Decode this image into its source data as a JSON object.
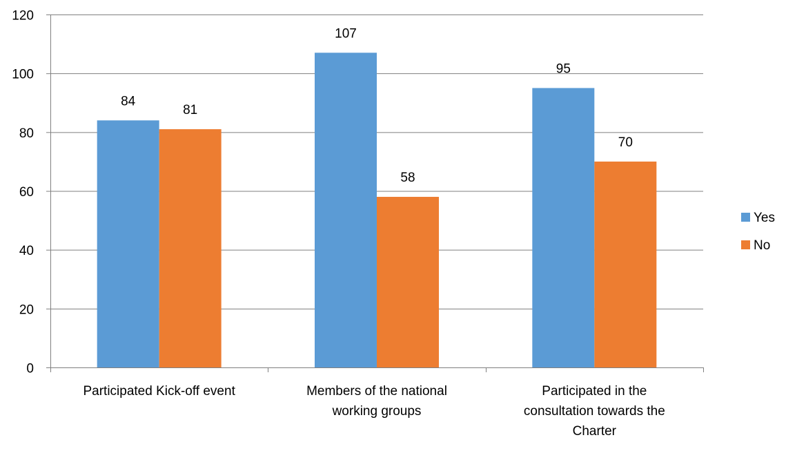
{
  "chart_data": {
    "type": "bar",
    "categories": [
      [
        "Participated Kick-off event"
      ],
      [
        "Members of the national",
        "working groups"
      ],
      [
        "Participated in the",
        "consultation towards the",
        "Charter"
      ]
    ],
    "series": [
      {
        "name": "Yes",
        "values": [
          84,
          107,
          95
        ],
        "color": "#5b9bd5"
      },
      {
        "name": "No",
        "values": [
          81,
          58,
          70
        ],
        "color": "#ed7d31"
      }
    ],
    "ylim": [
      0,
      120
    ],
    "yticks": [
      0,
      20,
      40,
      60,
      80,
      100,
      120
    ],
    "grid": true,
    "legend": "right",
    "data_labels": true,
    "title": "",
    "xlabel": "",
    "ylabel": ""
  }
}
